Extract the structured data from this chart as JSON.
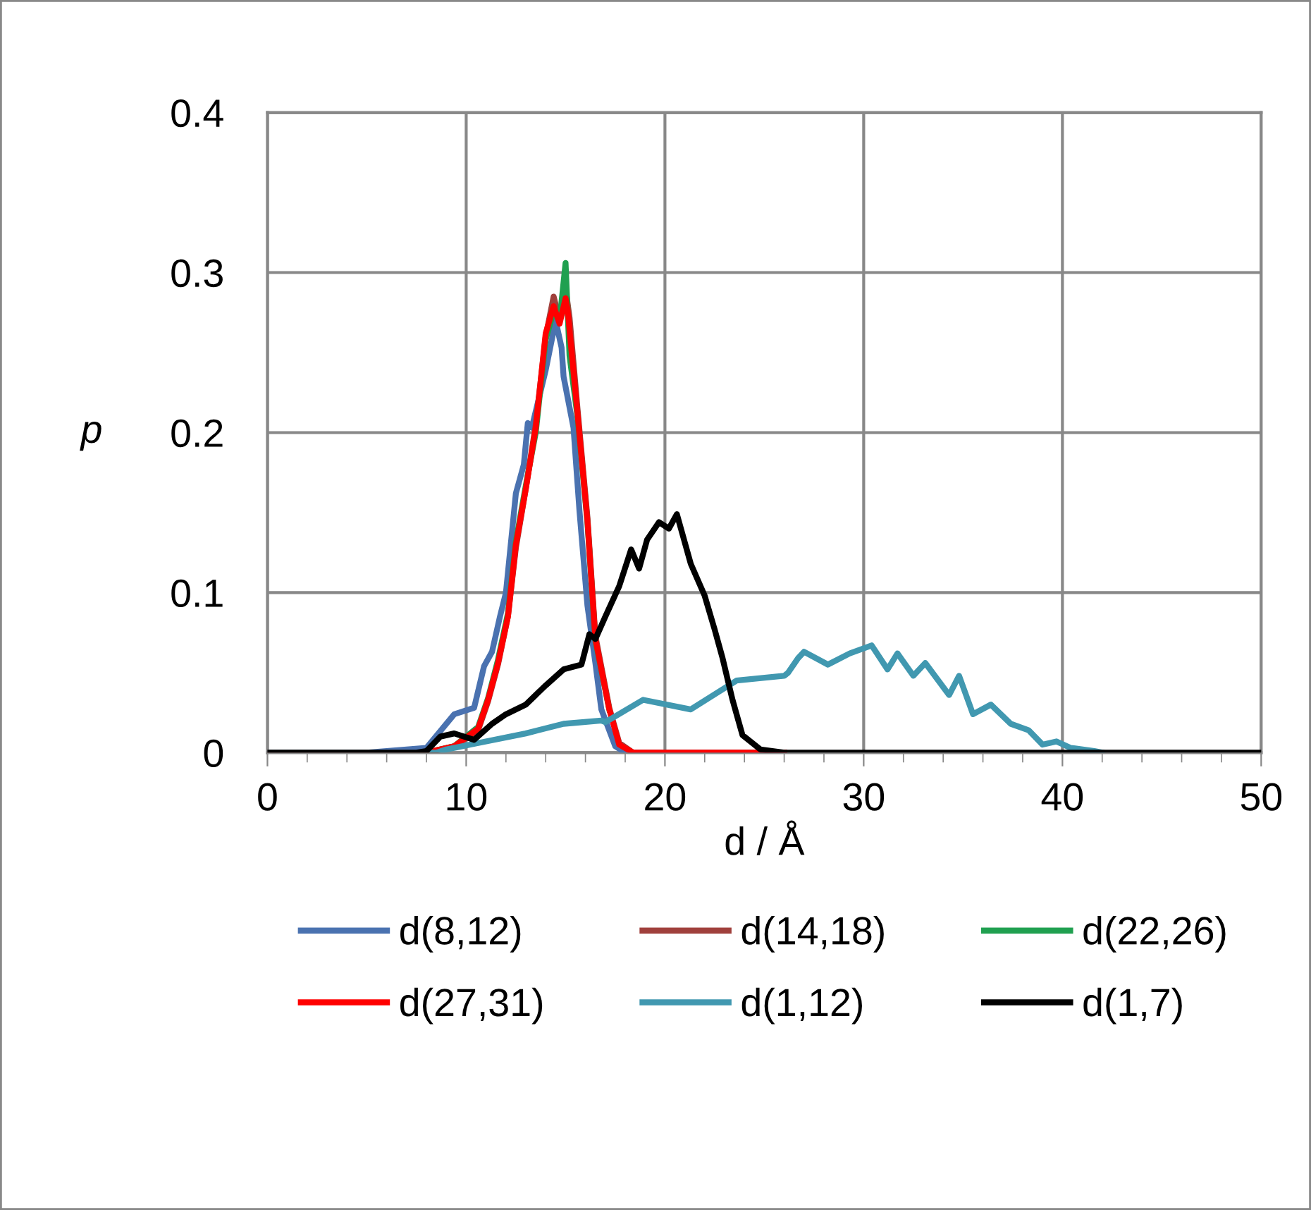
{
  "chart_data": {
    "type": "line",
    "xlabel": "d / Å",
    "ylabel": "p",
    "xlim": [
      0,
      50
    ],
    "ylim": [
      0,
      0.4
    ],
    "xticks": [
      0,
      {
        "value": 2,
        "label": null
      },
      {
        "value": 4,
        "label": null
      },
      {
        "value": 6,
        "label": null
      },
      {
        "value": 8,
        "label": null
      },
      10,
      {
        "value": 12,
        "label": null
      },
      {
        "value": 14,
        "label": null
      },
      {
        "value": 16,
        "label": null
      },
      {
        "value": 18,
        "label": null
      },
      20,
      {
        "value": 22,
        "label": null
      },
      {
        "value": 24,
        "label": null
      },
      {
        "value": 26,
        "label": null
      },
      {
        "value": 28,
        "label": null
      },
      30,
      {
        "value": 32,
        "label": null
      },
      {
        "value": 34,
        "label": null
      },
      {
        "value": 36,
        "label": null
      },
      {
        "value": 38,
        "label": null
      },
      40,
      {
        "value": 42,
        "label": null
      },
      {
        "value": 44,
        "label": null
      },
      {
        "value": 46,
        "label": null
      },
      {
        "value": 48,
        "label": null
      },
      50
    ],
    "yticks": [
      0,
      0.1,
      0.2,
      0.3,
      0.4
    ],
    "grid": true,
    "legend": "bottom",
    "marker": "none",
    "line_style": "solid",
    "series": [
      {
        "name": "d(8,12)",
        "color": "#4a72b0",
        "x": [
          0,
          5,
          8,
          9.4,
          10.4,
          10.9,
          11.3,
          11.7,
          12.0,
          12.5,
          12.9,
          13.1,
          13.3,
          14.0,
          14.5,
          14.8,
          14.9,
          15.4,
          15.7,
          16.1,
          16.5,
          16.8,
          17.5,
          18,
          26
        ],
        "values": [
          0,
          0,
          0.003,
          0.024,
          0.028,
          0.054,
          0.063,
          0.085,
          0.1,
          0.162,
          0.18,
          0.206,
          0.203,
          0.239,
          0.27,
          0.253,
          0.235,
          0.203,
          0.151,
          0.092,
          0.056,
          0.027,
          0.004,
          0,
          0
        ]
      },
      {
        "name": "d(14,18)",
        "color": "#a0403c",
        "x": [
          0,
          8,
          9.4,
          10.6,
          11.1,
          11.6,
          12.1,
          12.5,
          13.0,
          13.5,
          14.0,
          14.4,
          14.7,
          15.0,
          15.2,
          15.6,
          16.1,
          16.5,
          17.2,
          17.7,
          18.4,
          26
        ],
        "values": [
          0,
          0,
          0.004,
          0.014,
          0.032,
          0.055,
          0.085,
          0.128,
          0.165,
          0.205,
          0.26,
          0.285,
          0.27,
          0.29,
          0.272,
          0.215,
          0.147,
          0.073,
          0.028,
          0.006,
          0,
          0
        ]
      },
      {
        "name": "d(22,26)",
        "color": "#20a050",
        "x": [
          0,
          8,
          9.4,
          10.6,
          11.1,
          11.6,
          12.1,
          12.5,
          13.0,
          13.5,
          14.0,
          14.4,
          14.7,
          15.0,
          15.2,
          15.6,
          16.1,
          16.5,
          17.2
        ],
        "values": [
          0,
          0,
          0.004,
          0.016,
          0.034,
          0.058,
          0.087,
          0.132,
          0.167,
          0.2,
          0.258,
          0.276,
          0.27,
          0.306,
          0.248,
          0.21,
          0.144,
          0.07,
          0.027
        ]
      },
      {
        "name": "d(27,31)",
        "color": "#ff0000",
        "x": [
          0,
          8,
          9.4,
          10.6,
          11.1,
          11.6,
          12.1,
          12.5,
          13.0,
          13.5,
          14.0,
          14.4,
          14.7,
          15.0,
          15.1,
          15.6,
          16.1,
          16.5,
          17.2,
          17.7,
          18.4,
          26
        ],
        "values": [
          0,
          0,
          0.004,
          0.015,
          0.033,
          0.056,
          0.085,
          0.13,
          0.165,
          0.203,
          0.262,
          0.279,
          0.268,
          0.284,
          0.277,
          0.212,
          0.145,
          0.071,
          0.027,
          0.005,
          0,
          0
        ]
      },
      {
        "name": "d(1,12)",
        "color": "#4198b0",
        "x": [
          0,
          8.5,
          9.0,
          10.6,
          13.0,
          14.9,
          16.8,
          17.0,
          18.9,
          21.3,
          23.6,
          26.0,
          26.2,
          26.7,
          27.0,
          28.2,
          29.3,
          30.4,
          31.2,
          31.7,
          32.5,
          33.1,
          34.3,
          34.8,
          35.5,
          36.4,
          37.4,
          38.3,
          39.0,
          39.7,
          40.4,
          41.6,
          42
        ],
        "values": [
          0,
          0,
          0.002,
          0.006,
          0.012,
          0.018,
          0.02,
          0.019,
          0.033,
          0.027,
          0.045,
          0.048,
          0.05,
          0.059,
          0.063,
          0.055,
          0.062,
          0.067,
          0.052,
          0.062,
          0.048,
          0.056,
          0.036,
          0.048,
          0.024,
          0.03,
          0.018,
          0.014,
          0.005,
          0.007,
          0.003,
          0.001,
          0
        ]
      },
      {
        "name": "d(1,7)",
        "color": "#000000",
        "x": [
          0,
          7.5,
          8.0,
          8.7,
          9.4,
          10.4,
          11.3,
          12.0,
          13.0,
          14.0,
          14.9,
          15.8,
          16.2,
          16.5,
          17.0,
          17.7,
          18.3,
          18.7,
          19.1,
          19.7,
          20.2,
          20.6,
          21.3,
          22.0,
          22.5,
          22.9,
          23.4,
          23.9,
          24.8,
          26,
          50
        ],
        "values": [
          0,
          0,
          0.001,
          0.01,
          0.012,
          0.008,
          0.018,
          0.024,
          0.03,
          0.042,
          0.052,
          0.055,
          0.074,
          0.071,
          0.085,
          0.104,
          0.127,
          0.115,
          0.133,
          0.144,
          0.14,
          0.149,
          0.118,
          0.098,
          0.077,
          0.059,
          0.033,
          0.011,
          0.002,
          0,
          0
        ]
      }
    ]
  }
}
